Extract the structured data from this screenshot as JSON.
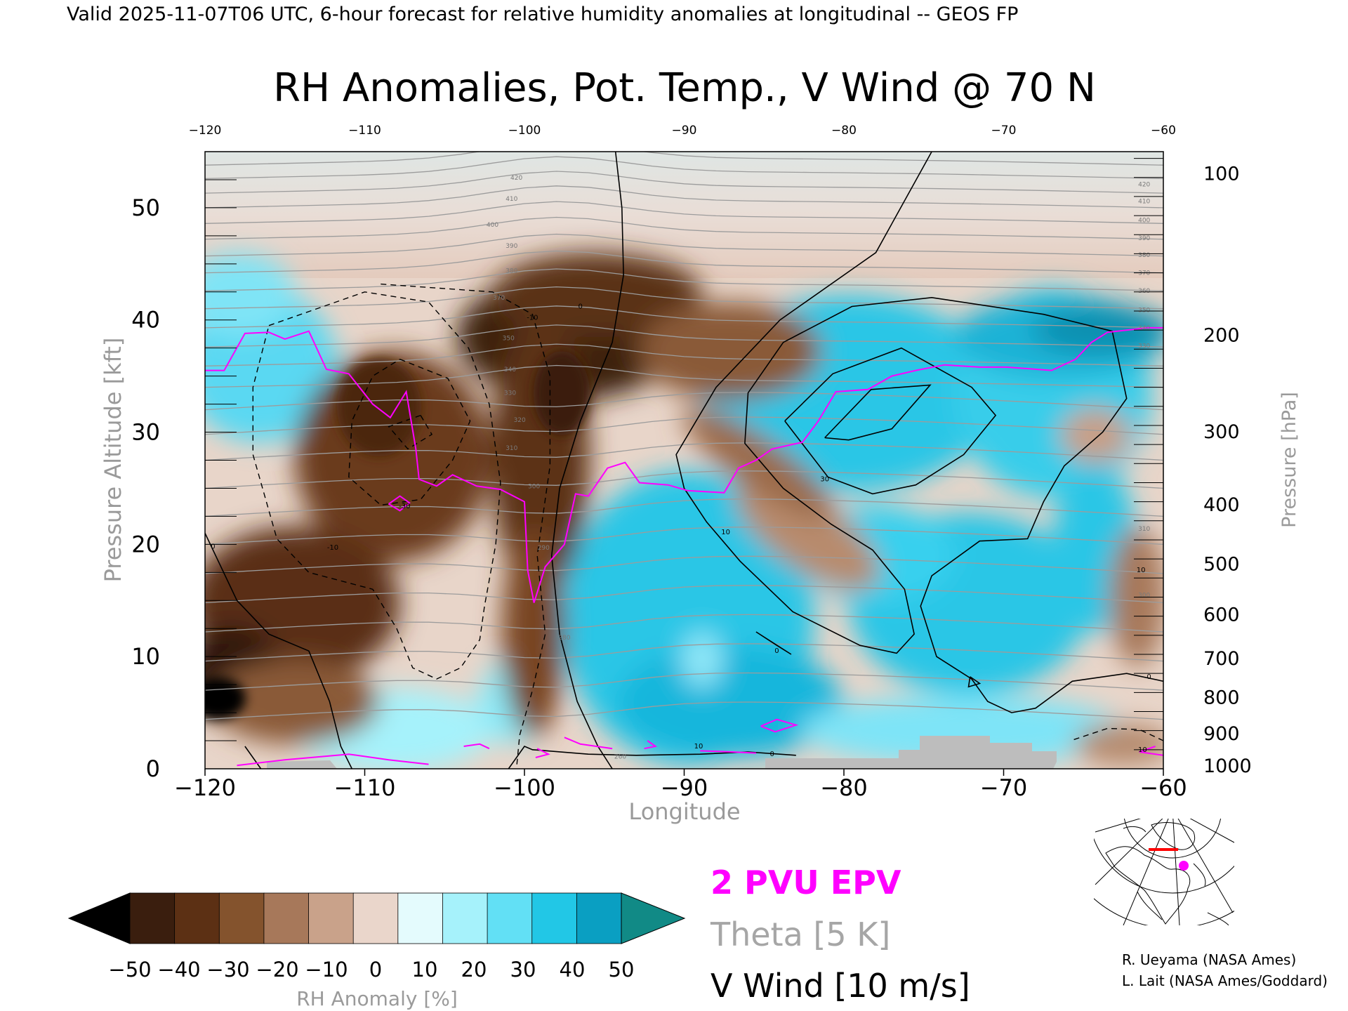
{
  "header": {
    "valid_line": "Valid 2025-11-07T06 UTC, 6-hour forecast for relative humidity anomalies at longitudinal -- GEOS FP"
  },
  "chart_data": {
    "type": "heatmap",
    "title": "RH Anomalies, Pot. Temp., V Wind @ 70 N",
    "xlabel": "Longitude",
    "ylabel_left": "Pressure Altitude [kft]",
    "ylabel_right": "Pressure [hPa]",
    "xlim": [
      -120,
      -60
    ],
    "ylim": [
      0,
      55
    ],
    "x_ticks": [
      -120,
      -110,
      -100,
      -90,
      -80,
      -70,
      -60
    ],
    "y_ticks": [
      0,
      10,
      20,
      30,
      40,
      50
    ],
    "top_x_ticks": [
      -120,
      -110,
      -100,
      -90,
      -80,
      -70,
      -60
    ],
    "pressure_ticks": [
      {
        "label": "100",
        "kft": 53.1
      },
      {
        "label": "200",
        "kft": 38.7
      },
      {
        "label": "300",
        "kft": 30.1
      },
      {
        "label": "400",
        "kft": 23.6
      },
      {
        "label": "500",
        "kft": 18.3
      },
      {
        "label": "600",
        "kft": 13.8
      },
      {
        "label": "700",
        "kft": 9.9
      },
      {
        "label": "800",
        "kft": 6.4
      },
      {
        "label": "900",
        "kft": 3.2
      },
      {
        "label": "1000",
        "kft": 0.3
      }
    ],
    "colorbar": {
      "label": "RH Anomaly [%]",
      "ticks": [
        "-50",
        "-40",
        "-30",
        "-20",
        "-10",
        "0",
        "10",
        "20",
        "30",
        "40",
        "50"
      ],
      "colors": [
        "#3a1e0e",
        "#5c3014",
        "#84532d",
        "#a7785a",
        "#c9a28a",
        "#ead6cb",
        "#e4fbfd",
        "#a6f2fb",
        "#62e0f5",
        "#22c7e6",
        "#0a9fc2"
      ],
      "under_color": "#000000",
      "over_color": "#118a86"
    },
    "legend": [
      {
        "label": "2 PVU EPV",
        "color": "#ff00ff"
      },
      {
        "label": "Theta [5 K]",
        "color": "#9c9c9c"
      },
      {
        "label": "V Wind [10 m/s]",
        "color": "#000000"
      }
    ],
    "theta_labels_left": [
      {
        "text": "420",
        "x": -100.5,
        "y": 52.7
      },
      {
        "text": "410",
        "x": -100.8,
        "y": 50.8
      },
      {
        "text": "400",
        "x": -102.0,
        "y": 48.5
      },
      {
        "text": "390",
        "x": -100.8,
        "y": 46.6
      },
      {
        "text": "380",
        "x": -100.8,
        "y": 44.4
      },
      {
        "text": "370",
        "x": -101.6,
        "y": 42.0
      },
      {
        "text": "350",
        "x": -101.0,
        "y": 38.4
      },
      {
        "text": "340",
        "x": -100.9,
        "y": 35.6
      },
      {
        "text": "330",
        "x": -100.9,
        "y": 33.5
      },
      {
        "text": "320",
        "x": -100.3,
        "y": 31.1
      },
      {
        "text": "310",
        "x": -100.8,
        "y": 28.6
      },
      {
        "text": "300",
        "x": -99.4,
        "y": 25.2
      },
      {
        "text": "290",
        "x": -98.8,
        "y": 19.7
      },
      {
        "text": "280",
        "x": -97.5,
        "y": 11.7
      },
      {
        "text": "260",
        "x": -94.0,
        "y": 1.1
      }
    ],
    "theta_labels_right": [
      {
        "text": "420",
        "x": -61.2,
        "y": 52.1
      },
      {
        "text": "410",
        "x": -61.2,
        "y": 50.6
      },
      {
        "text": "400",
        "x": -61.2,
        "y": 48.9
      },
      {
        "text": "390",
        "x": -61.2,
        "y": 47.3
      },
      {
        "text": "380",
        "x": -61.2,
        "y": 45.8
      },
      {
        "text": "370",
        "x": -61.2,
        "y": 44.2
      },
      {
        "text": "360",
        "x": -61.2,
        "y": 42.6
      },
      {
        "text": "350",
        "x": -61.2,
        "y": 40.9
      },
      {
        "text": "340",
        "x": -61.2,
        "y": 39.3
      },
      {
        "text": "330",
        "x": -61.2,
        "y": 37.7
      },
      {
        "text": "310",
        "x": -61.2,
        "y": 21.4
      },
      {
        "text": "300",
        "x": -61.2,
        "y": 15.5
      }
    ],
    "wind_labels": [
      {
        "text": "0",
        "x": -96.5,
        "y": 41.2
      },
      {
        "text": "-10",
        "x": -99.5,
        "y": 40.2
      },
      {
        "text": "-30",
        "x": -107.5,
        "y": 23.4
      },
      {
        "text": "-10",
        "x": -112.0,
        "y": 19.7
      },
      {
        "text": "0",
        "x": -119.5,
        "y": 19.8
      },
      {
        "text": "10",
        "x": -87.4,
        "y": 21.1
      },
      {
        "text": "30",
        "x": -81.2,
        "y": 25.8
      },
      {
        "text": "0",
        "x": -84.2,
        "y": 10.5
      },
      {
        "text": "10",
        "x": -89.1,
        "y": 2.0
      },
      {
        "text": "0",
        "x": -84.5,
        "y": 1.3
      },
      {
        "text": "10",
        "x": -61.4,
        "y": 17.7
      },
      {
        "text": "0",
        "x": -60.9,
        "y": 8.2
      },
      {
        "text": "10",
        "x": -61.3,
        "y": 1.7
      }
    ]
  },
  "inset_map": {
    "description_color_line": "#ff0000",
    "marker_color": "#ff00ff"
  },
  "credits": {
    "line1": "R. Ueyama (NASA Ames)",
    "line2": "L. Lait (NASA Ames/Goddard)"
  }
}
